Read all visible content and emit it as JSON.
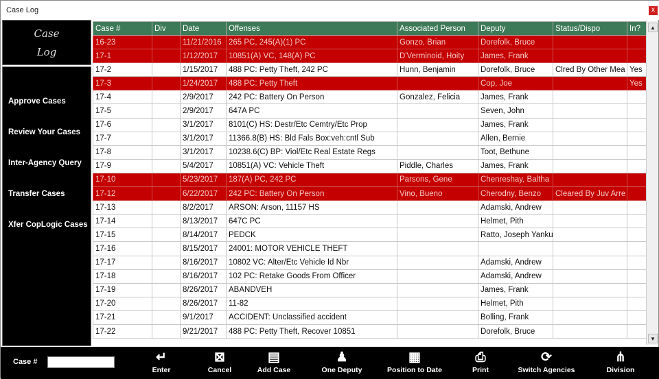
{
  "window": {
    "title": "Case Log",
    "close": "x"
  },
  "logo": {
    "line1": "Case",
    "line2": "Log"
  },
  "nav": [
    "Approve Cases",
    "Review Your Cases",
    "Inter-Agency Query",
    "Transfer Cases",
    "Xfer CopLogic Cases"
  ],
  "columns": [
    "Case #",
    "Div",
    "Date",
    "Offenses",
    "Associated Person",
    "Deputy",
    "Status/Dispo",
    "In?"
  ],
  "colors": {
    "header": "#3d7a57",
    "flagged_row": "#c40000"
  },
  "rows": [
    {
      "flagged": true,
      "cells": [
        "16-23",
        "",
        "11/21/2016",
        "265 PC, 245(A)(1) PC",
        "Gonzo, Brian",
        "Dorefolk, Bruce",
        "",
        ""
      ]
    },
    {
      "flagged": true,
      "cells": [
        "17-1",
        "",
        "1/12/2017",
        "10851(A) VC, 148(A) PC",
        "D'Verminoid, Hoity",
        "James, Frank",
        "",
        ""
      ]
    },
    {
      "flagged": false,
      "cells": [
        "17-2",
        "",
        "1/15/2017",
        "488 PC: Petty Theft, 242 PC",
        "Hunn, Benjamin",
        "Dorefolk, Bruce",
        "Clred By Other Mea",
        "Yes"
      ]
    },
    {
      "flagged": true,
      "cells": [
        "17-3",
        "",
        "1/24/2017",
        "488 PC: Petty Theft",
        "",
        "Cop, Joe",
        "",
        "Yes"
      ]
    },
    {
      "flagged": false,
      "cells": [
        "17-4",
        "",
        "2/9/2017",
        "242 PC: Battery On Person",
        "Gonzalez, Felicia",
        "James, Frank",
        "",
        ""
      ]
    },
    {
      "flagged": false,
      "cells": [
        "17-5",
        "",
        "2/9/2017",
        "647A PC",
        "",
        "Seven, John",
        "",
        ""
      ]
    },
    {
      "flagged": false,
      "cells": [
        "17-6",
        "",
        "3/1/2017",
        "8101(C) HS: Destr/Etc Cemtry/Etc Prop",
        "",
        "James, Frank",
        "",
        ""
      ]
    },
    {
      "flagged": false,
      "cells": [
        "17-7",
        "",
        "3/1/2017",
        "11366.8(B) HS: Bld Fals Box:veh:cntl Sub",
        "",
        "Allen, Bernie",
        "",
        ""
      ]
    },
    {
      "flagged": false,
      "cells": [
        "17-8",
        "",
        "3/1/2017",
        "10238.6(C) BP: Viol/Etc Real Estate Regs",
        "",
        "Toot, Bethune",
        "",
        ""
      ]
    },
    {
      "flagged": false,
      "cells": [
        "17-9",
        "",
        "5/4/2017",
        "10851(A) VC: Vehicle Theft",
        "Piddle, Charles",
        "James, Frank",
        "",
        ""
      ]
    },
    {
      "flagged": true,
      "cells": [
        "17-10",
        "",
        "5/23/2017",
        "187(A) PC, 242 PC",
        "Parsons, Gene",
        "Chenreshay, Baltha",
        "",
        ""
      ]
    },
    {
      "flagged": true,
      "cells": [
        "17-12",
        "",
        "6/22/2017",
        "242 PC: Battery On Person",
        "Vino, Bueno",
        "Cherodny, Benzo",
        "Cleared By Juv Arre",
        ""
      ]
    },
    {
      "flagged": false,
      "cells": [
        "17-13",
        "",
        "8/2/2017",
        "ARSON: Arson, 11157 HS",
        "",
        "Adamski, Andrew",
        "",
        ""
      ]
    },
    {
      "flagged": false,
      "cells": [
        "17-14",
        "",
        "8/13/2017",
        "647C PC",
        "",
        "Helmet, Pith",
        "",
        ""
      ]
    },
    {
      "flagged": false,
      "cells": [
        "17-15",
        "",
        "8/14/2017",
        "PEDCK",
        "",
        "Ratto, Joseph Yanku",
        "",
        ""
      ]
    },
    {
      "flagged": false,
      "cells": [
        "17-16",
        "",
        "8/15/2017",
        "24001: MOTOR VEHICLE THEFT",
        "",
        "",
        "",
        ""
      ]
    },
    {
      "flagged": false,
      "cells": [
        "17-17",
        "",
        "8/16/2017",
        "10802 VC: Alter/Etc Vehicle Id Nbr",
        "",
        "Adamski, Andrew",
        "",
        ""
      ]
    },
    {
      "flagged": false,
      "cells": [
        "17-18",
        "",
        "8/16/2017",
        "102 PC: Retake Goods From Officer",
        "",
        "Adamski, Andrew",
        "",
        ""
      ]
    },
    {
      "flagged": false,
      "cells": [
        "17-19",
        "",
        "8/26/2017",
        "ABANDVEH",
        "",
        "James, Frank",
        "",
        ""
      ]
    },
    {
      "flagged": false,
      "cells": [
        "17-20",
        "",
        "8/26/2017",
        "11-82",
        "",
        "Helmet, Pith",
        "",
        ""
      ]
    },
    {
      "flagged": false,
      "cells": [
        "17-21",
        "",
        "9/1/2017",
        "ACCIDENT: Unclassified accident",
        "",
        "Bolling, Frank",
        "",
        ""
      ]
    },
    {
      "flagged": false,
      "cells": [
        "17-22",
        "",
        "9/21/2017",
        "488 PC: Petty Theft, Recover 10851",
        "",
        "Dorefolk, Bruce",
        "",
        ""
      ]
    }
  ],
  "bottom": {
    "case_label": "Case #",
    "case_value": "",
    "buttons": [
      {
        "label": "Enter",
        "icon": "enter-arrow-icon",
        "glyph": "↵"
      },
      {
        "label": "Cancel",
        "icon": "cancel-document-icon",
        "glyph": "⊠"
      },
      {
        "label": "Add Case",
        "icon": "add-document-icon",
        "glyph": "▤"
      },
      {
        "label": "One Deputy",
        "icon": "deputy-icon",
        "glyph": "♟"
      },
      {
        "label": "Position to Date",
        "icon": "calendar-icon",
        "glyph": "▦"
      },
      {
        "label": "Print",
        "icon": "printer-icon",
        "glyph": "⎙"
      },
      {
        "label": "Switch Agencies",
        "icon": "refresh-icon",
        "glyph": "⟳"
      },
      {
        "label": "Division",
        "icon": "org-chart-icon",
        "glyph": "⋔"
      }
    ]
  }
}
